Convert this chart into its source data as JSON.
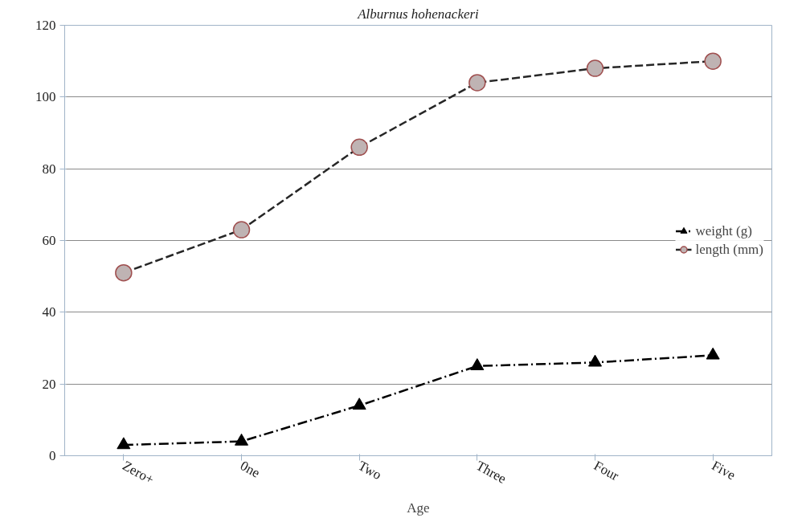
{
  "chart_data": {
    "type": "line",
    "title": "Alburnus hohenackeri",
    "xlabel": "Age",
    "categories": [
      "Zero+",
      "0ne",
      "Two",
      "Three",
      "Four",
      "Five"
    ],
    "series": [
      {
        "name": "weight (g)",
        "color": "#000000",
        "values": [
          3,
          4,
          14,
          25,
          26,
          28
        ],
        "marker": "triangle",
        "line_style": "dashdot"
      },
      {
        "name": "length (mm)",
        "color": "#262626",
        "values": [
          51,
          63,
          86,
          104,
          108,
          110
        ],
        "marker": "circle",
        "line_style": "dashed"
      }
    ],
    "ylim": [
      0,
      120
    ],
    "yticks": [
      0,
      20,
      40,
      60,
      80,
      100,
      120
    ],
    "grid": "y",
    "legend": "right"
  }
}
